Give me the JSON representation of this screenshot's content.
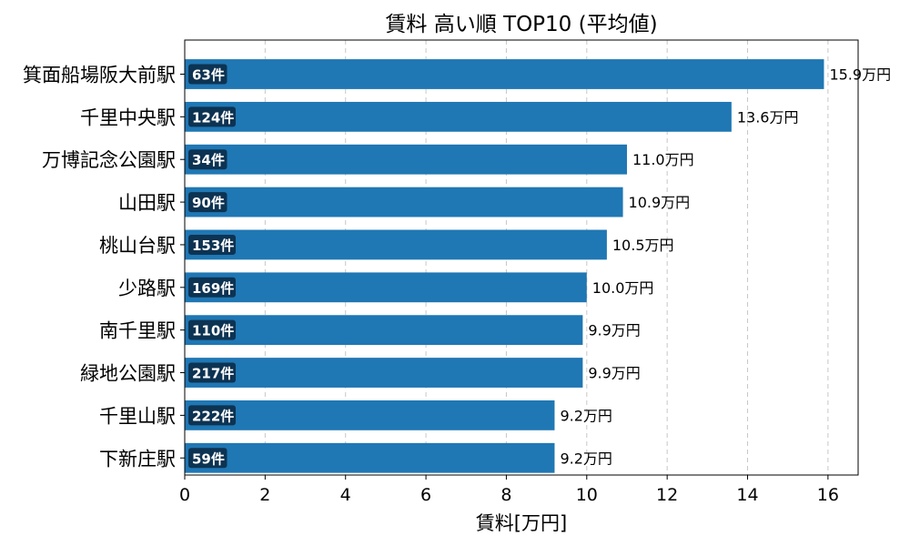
{
  "chart_data": {
    "type": "bar",
    "orientation": "horizontal",
    "title": "賃料 高い順 TOP10 (平均値)",
    "xlabel": "賃料[万円]",
    "ylabel": "",
    "xlim": [
      0,
      16.75
    ],
    "xticks": [
      "0",
      "2",
      "4",
      "6",
      "8",
      "10",
      "12",
      "14",
      "16"
    ],
    "grid": "x-dashed",
    "bar_color": "#1f77b4",
    "badge_color": "#0d3352",
    "categories": [
      "箕面船場阪大前駅",
      "千里中央駅",
      "万博記念公園駅",
      "山田駅",
      "桃山台駅",
      "少路駅",
      "南千里駅",
      "緑地公園駅",
      "千里山駅",
      "下新庄駅"
    ],
    "values": [
      15.9,
      13.6,
      11.0,
      10.9,
      10.5,
      10.0,
      9.9,
      9.9,
      9.2,
      9.2
    ],
    "value_labels": [
      "15.9万円",
      "13.6万円",
      "11.0万円",
      "10.9万円",
      "10.5万円",
      "10.0万円",
      "9.9万円",
      "9.9万円",
      "9.2万円",
      "9.2万円"
    ],
    "counts": [
      "63件",
      "124件",
      "34件",
      "90件",
      "153件",
      "169件",
      "110件",
      "217件",
      "222件",
      "59件"
    ]
  }
}
